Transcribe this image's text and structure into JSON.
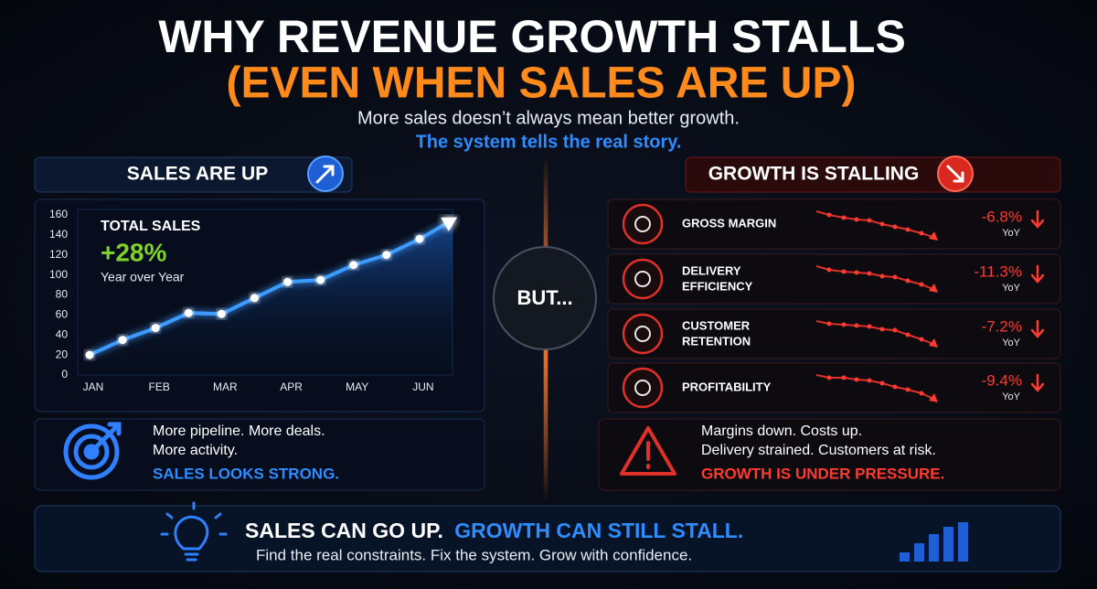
{
  "header": {
    "title": "WHY REVENUE GROWTH STALLS",
    "title_highlight": "(EVEN WHEN SALES ARE UP)",
    "subtitle": "More sales doesn’t always mean better growth.",
    "subtitle_highlight": "The system tells the real story."
  },
  "left_panel": {
    "heading": "SALES ARE UP",
    "notes": [
      "More pipeline. More deals.",
      "More activity."
    ],
    "conclusion": "SALES LOOKS STRONG."
  },
  "chart_data": {
    "type": "line",
    "annotations": [
      "TOTAL SALES",
      "+28%",
      "Year over Year"
    ],
    "categories": [
      "JAN",
      null,
      "FEB",
      null,
      "MAR",
      null,
      "APR",
      null,
      "MAY",
      null,
      "JUN",
      null
    ],
    "values": [
      20,
      35,
      47,
      62,
      61,
      77,
      93,
      95,
      110,
      120,
      136,
      155
    ],
    "color": "#3d9bff",
    "ylim": [
      0,
      160
    ],
    "yticks": [
      0,
      20,
      40,
      60,
      80,
      100,
      120,
      140,
      160
    ],
    "grid": false
  },
  "divider": "BUT...",
  "right_panel": {
    "heading": "GROWTH IS STALLING",
    "metrics": [
      {
        "label": [
          "GROSS MARGIN"
        ],
        "change": "-6.8%",
        "period": "YoY"
      },
      {
        "label": [
          "DELIVERY",
          "EFFICIENCY"
        ],
        "change": "-11.3%",
        "period": "YoY"
      },
      {
        "label": [
          "CUSTOMER",
          "RETENTION"
        ],
        "change": "-7.2%",
        "period": "YoY"
      },
      {
        "label": [
          "PROFITABILITY"
        ],
        "change": "-9.4%",
        "period": "YoY"
      }
    ],
    "notes": [
      "Margins down. Costs up.",
      "Delivery strained. Customers at risk."
    ],
    "conclusion": "GROWTH IS UNDER PRESSURE."
  },
  "footer": {
    "headline": "SALES CAN GO UP.",
    "headline_highlight": "GROWTH CAN STILL STALL.",
    "tagline": "Find the real constraints. Fix the system. Grow with confidence."
  }
}
